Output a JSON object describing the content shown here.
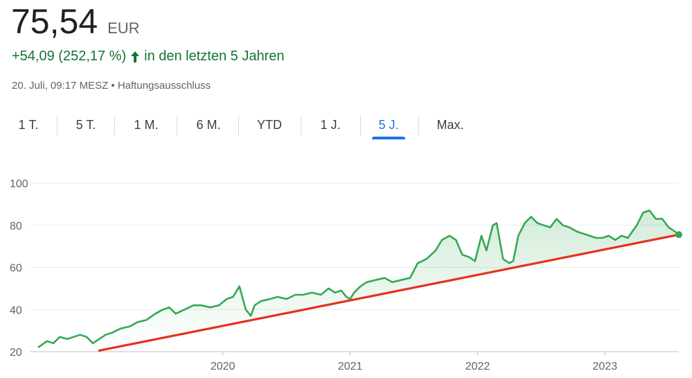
{
  "quote": {
    "price": "75,54",
    "currency": "EUR",
    "change": "+54,09 (252,17 %)",
    "period": "in den letzten 5 Jahren",
    "timestamp": "20. Juli, 09:17 MESZ",
    "separator": "•",
    "disclaimer": "Haftungsausschluss"
  },
  "tabs": [
    {
      "label": "1 T.",
      "active": false
    },
    {
      "label": "5 T.",
      "active": false
    },
    {
      "label": "1 M.",
      "active": false
    },
    {
      "label": "6 M.",
      "active": false
    },
    {
      "label": "YTD",
      "active": false
    },
    {
      "label": "1 J.",
      "active": false
    },
    {
      "label": "5 J.",
      "active": true
    },
    {
      "label": "Max.",
      "active": false
    }
  ],
  "colors": {
    "price_line": "#34a853",
    "trend_line": "#ea2e1e",
    "active_tab": "#1a73e8",
    "positive": "#137333",
    "grid": "#e8eaed"
  },
  "chart_data": {
    "type": "line",
    "ylim": [
      20,
      100
    ],
    "yticks": [
      20,
      40,
      60,
      80,
      100
    ],
    "xlim": [
      2018.55,
      2023.58
    ],
    "xticks": [
      {
        "value": 2020.0,
        "label": "2020"
      },
      {
        "value": 2021.0,
        "label": "2021"
      },
      {
        "value": 2022.0,
        "label": "2022"
      },
      {
        "value": 2023.0,
        "label": "2023"
      }
    ],
    "grid": true,
    "series": [
      {
        "x": [
          2018.55,
          2018.62,
          2018.67,
          2018.72,
          2018.78,
          2018.83,
          2018.88,
          2018.93,
          2018.98,
          2019.03,
          2019.08,
          2019.13,
          2019.2,
          2019.27,
          2019.33,
          2019.4,
          2019.47,
          2019.53,
          2019.58,
          2019.63,
          2019.7,
          2019.77,
          2019.83,
          2019.9,
          2019.97,
          2020.03,
          2020.08,
          2020.13,
          2020.18,
          2020.22,
          2020.25,
          2020.3,
          2020.37,
          2020.43,
          2020.5,
          2020.57,
          2020.63,
          2020.7,
          2020.77,
          2020.83,
          2020.88,
          2020.93,
          2020.97,
          2021.0,
          2021.03,
          2021.08,
          2021.13,
          2021.2,
          2021.27,
          2021.33,
          2021.4,
          2021.47,
          2021.53,
          2021.6,
          2021.67,
          2021.72,
          2021.78,
          2021.83,
          2021.88,
          2021.93,
          2021.98,
          2022.03,
          2022.07,
          2022.12,
          2022.15,
          2022.2,
          2022.25,
          2022.28,
          2022.32,
          2022.37,
          2022.42,
          2022.47,
          2022.52,
          2022.57,
          2022.62,
          2022.67,
          2022.72,
          2022.78,
          2022.83,
          2022.88,
          2022.93,
          2022.98,
          2023.03,
          2023.08,
          2023.13,
          2023.18,
          2023.25,
          2023.3,
          2023.35,
          2023.4,
          2023.45,
          2023.5,
          2023.55,
          2023.58
        ],
        "y": [
          22,
          25,
          24,
          27,
          26,
          27,
          28,
          27,
          24,
          26,
          28,
          29,
          31,
          32,
          34,
          35,
          38,
          40,
          41,
          38,
          40,
          42,
          42,
          41,
          42,
          45,
          46,
          51,
          40,
          37,
          42,
          44,
          45,
          46,
          45,
          47,
          47,
          48,
          47,
          50,
          48,
          49,
          46,
          45,
          48,
          51,
          53,
          54,
          55,
          53,
          54,
          55,
          62,
          64,
          68,
          73,
          75,
          73,
          66,
          65,
          63,
          75,
          68,
          80,
          81,
          64,
          62,
          63,
          75,
          81,
          84,
          81,
          80,
          79,
          83,
          80,
          79,
          77,
          76,
          75,
          74,
          74,
          75,
          73,
          75,
          74,
          80,
          86,
          87,
          83,
          83,
          79,
          77,
          75.54
        ]
      },
      {
        "x": [
          2019.03,
          2023.58
        ],
        "y": [
          20.5,
          75.54
        ]
      }
    ]
  }
}
